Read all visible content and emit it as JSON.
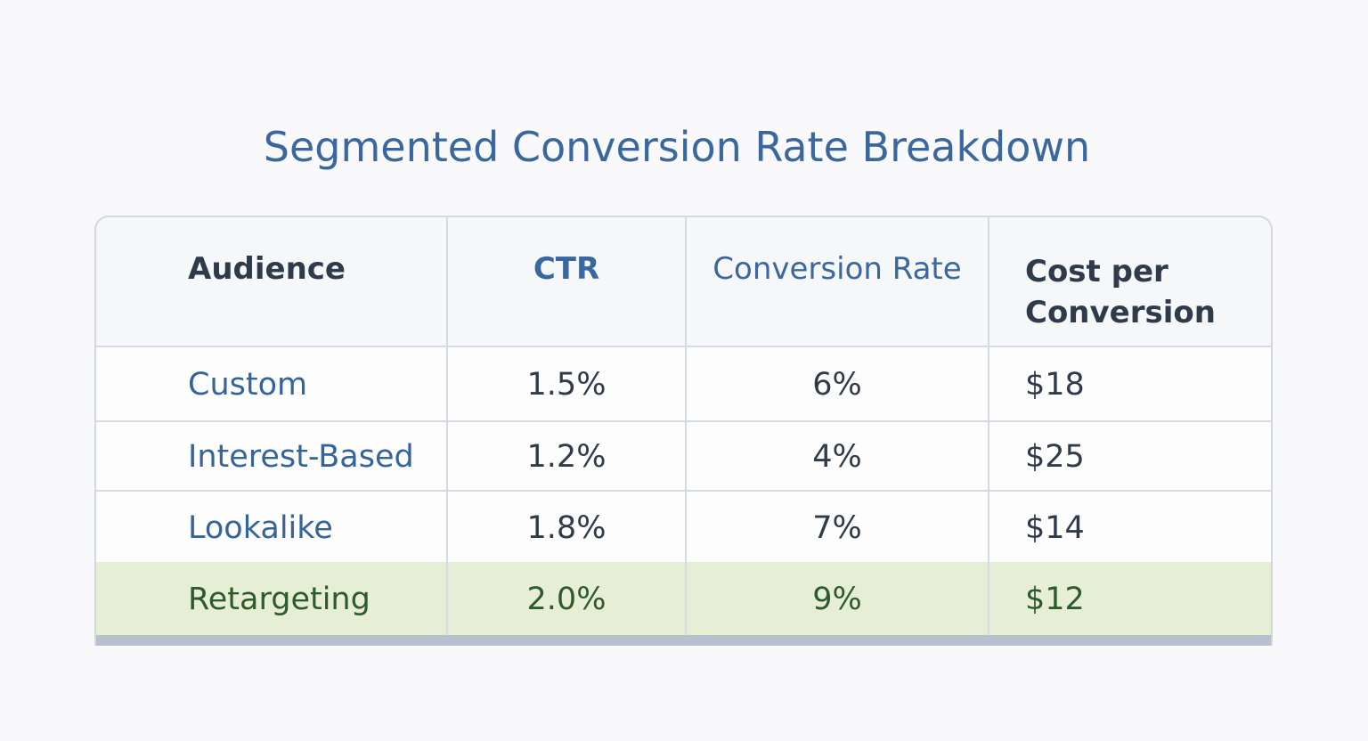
{
  "title": "Segmented Conversion Rate Breakdown",
  "colors": {
    "title": "#3a679e",
    "highlight_row": "#e6efd6",
    "highlight_text": "#2f5a2c",
    "audience_text": "#35649a"
  },
  "chart_data": {
    "type": "table",
    "title": "Segmented Conversion Rate Breakdown",
    "columns": [
      "Audience",
      "CTR",
      "Conversion Rate",
      "Cost per Conversion"
    ],
    "rows": [
      [
        "Custom",
        "1.5%",
        "6%",
        "$18"
      ],
      [
        "Interest-Based",
        "1.2%",
        "4%",
        "$25"
      ],
      [
        "Lookalike",
        "1.8%",
        "7%",
        "$14"
      ],
      [
        "Retargeting",
        "2.0%",
        "9%",
        "$12"
      ]
    ],
    "highlighted_row": "Retargeting"
  }
}
